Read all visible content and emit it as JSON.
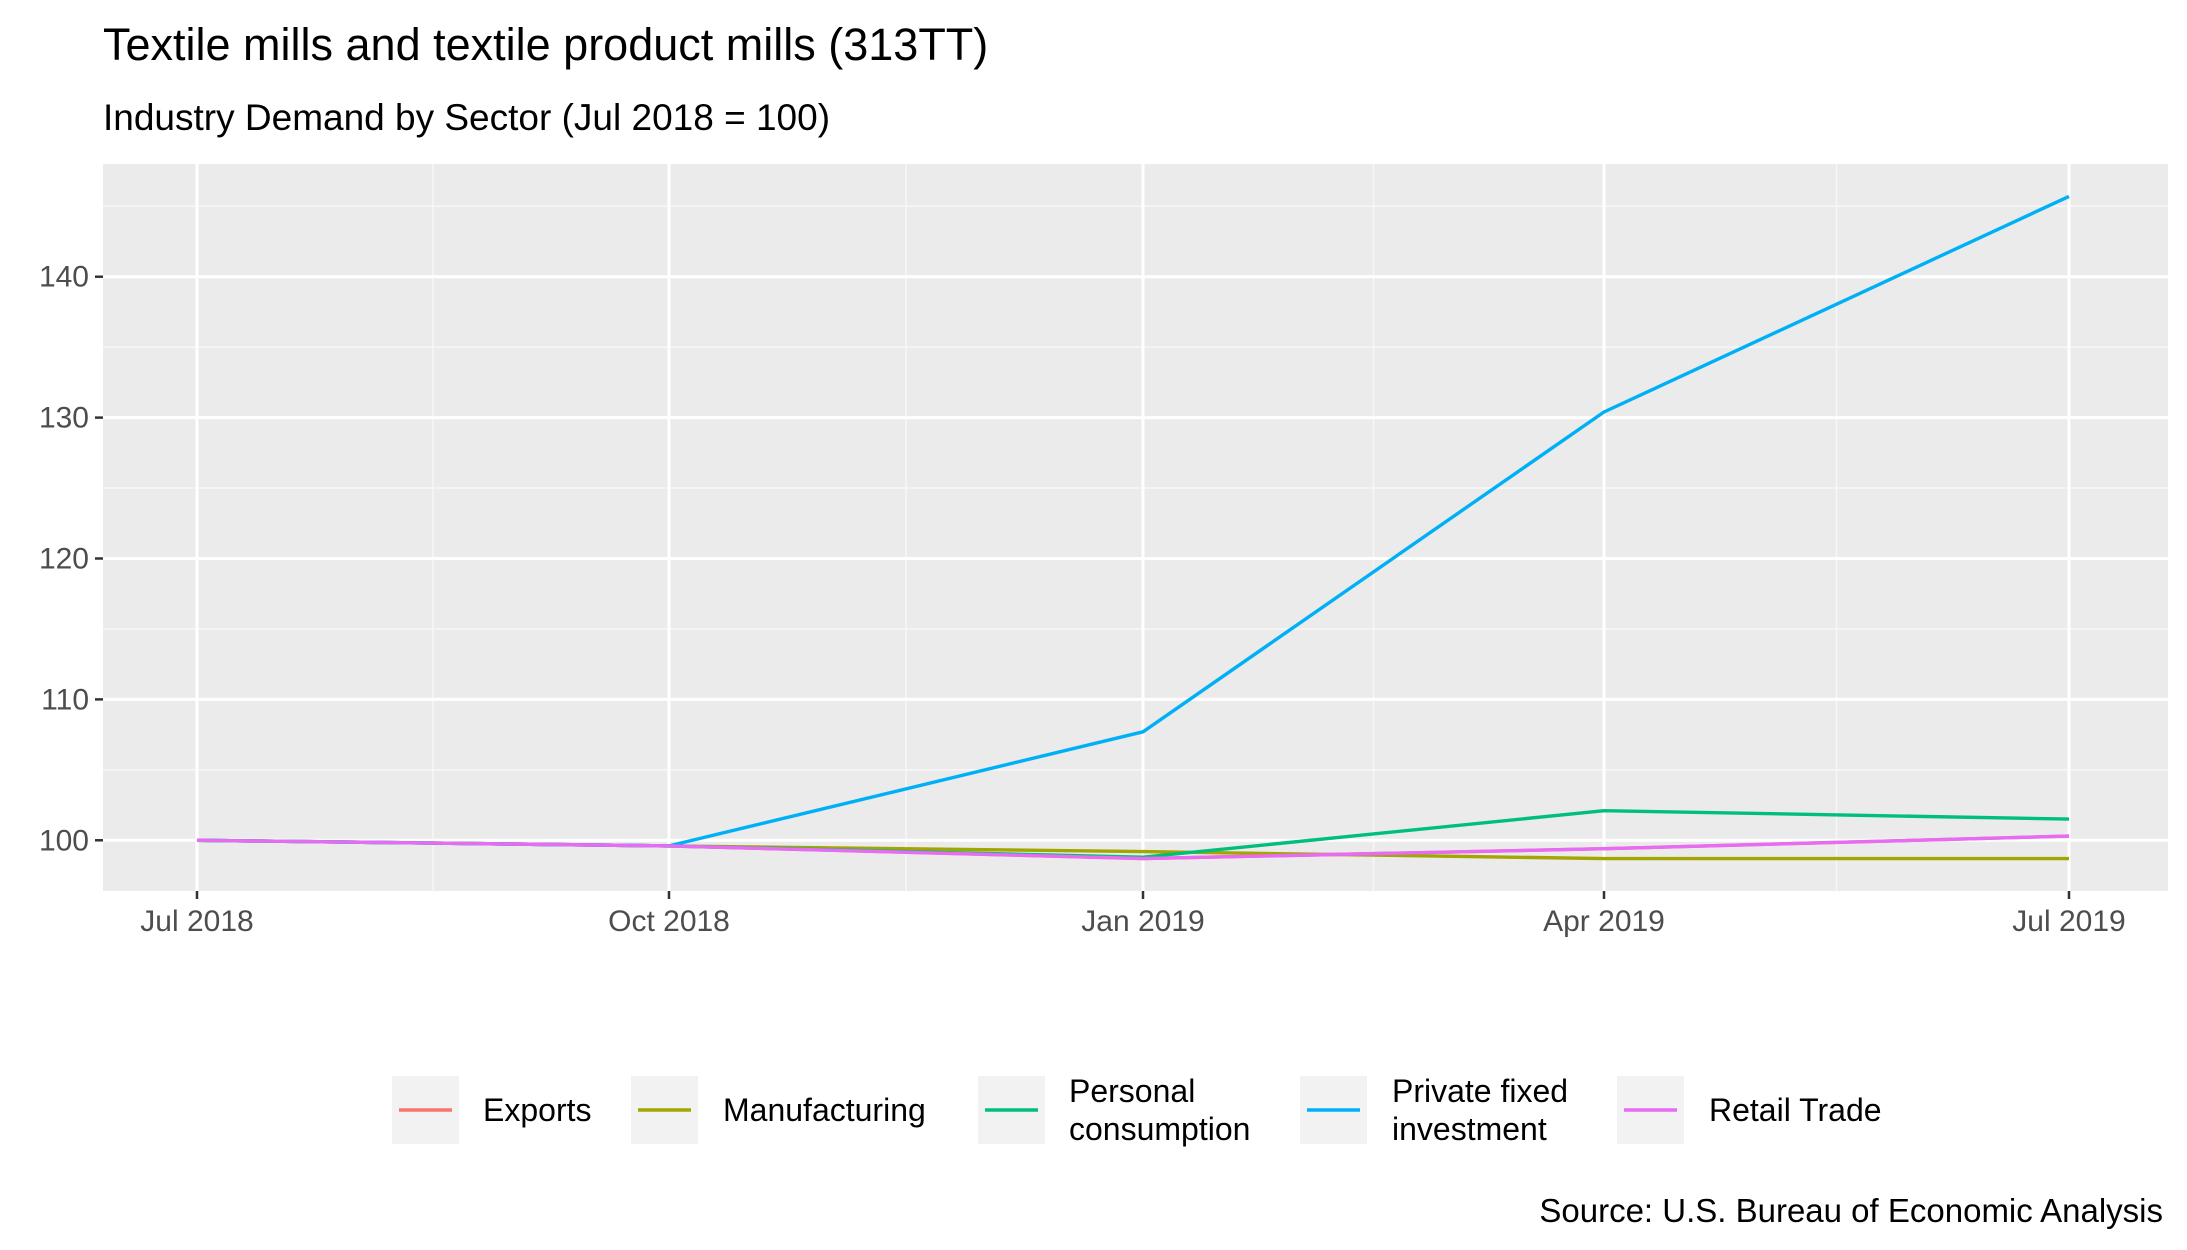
{
  "chart_data": {
    "type": "line",
    "title": "Textile mills and textile product mills (313TT)",
    "subtitle": "Industry Demand by Sector (Jul 2018 = 100)",
    "caption": "Source: U.S. Bureau of Economic Analysis",
    "x_labels": [
      "Jul 2018",
      "Oct 2018",
      "Jan 2019",
      "Apr 2019",
      "Jul 2019"
    ],
    "y_ticks": [
      100,
      110,
      120,
      130,
      140
    ],
    "ylim": [
      96.4,
      148
    ],
    "grid": true,
    "legend_position": "bottom",
    "series": [
      {
        "name": "Exports",
        "color": "#F8766D",
        "legend_lines": [
          "Exports"
        ],
        "values": [
          100,
          99.6,
          98.7,
          99.4,
          100.3
        ]
      },
      {
        "name": "Manufacturing",
        "color": "#A3A500",
        "legend_lines": [
          "Manufacturing"
        ],
        "values": [
          100,
          99.6,
          99.2,
          98.7,
          98.7
        ]
      },
      {
        "name": "Personal consumption",
        "color": "#00BF7D",
        "legend_lines": [
          "Personal",
          "consumption"
        ],
        "values": [
          100,
          99.6,
          98.8,
          102.1,
          101.5
        ]
      },
      {
        "name": "Private fixed investment",
        "color": "#00B0F6",
        "legend_lines": [
          "Private fixed",
          "investment"
        ],
        "values": [
          100,
          99.6,
          107.7,
          130.4,
          145.7
        ]
      },
      {
        "name": "Retail Trade",
        "color": "#E76BF3",
        "legend_lines": [
          "Retail Trade"
        ],
        "values": [
          100,
          99.6,
          98.7,
          99.4,
          100.3
        ]
      }
    ]
  }
}
